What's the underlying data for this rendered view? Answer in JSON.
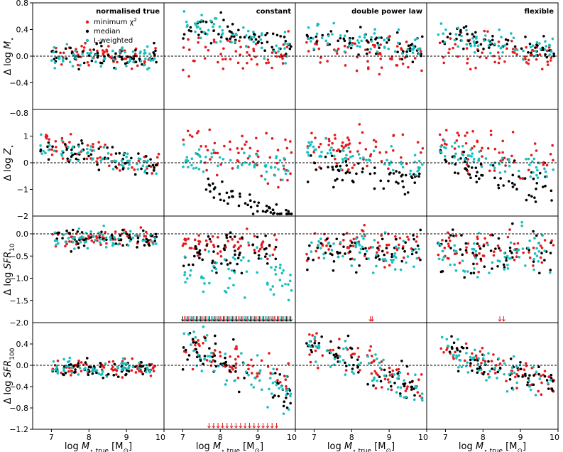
{
  "chart_data": {
    "type": "scatter",
    "layout": {
      "rows": 4,
      "cols": 4,
      "shared_x": true,
      "shared_y_by_row": true
    },
    "x_range": [
      6.5,
      10
    ],
    "x_ticks": [
      7,
      8,
      9,
      10
    ],
    "x_tick_labels": [
      "7",
      "8",
      "9",
      "10"
    ],
    "xlabel": [
      "log M",
      "⋆,true",
      " [M",
      "⊙",
      "]"
    ],
    "columns": [
      "normalised true",
      "constant",
      "double power law",
      "flexible"
    ],
    "colors": {
      "minimum_chi2": "#e41a1c",
      "median": "#000000",
      "l_weighted": "#17bfbf"
    },
    "legend": {
      "panel": "row0-col0",
      "placement": "top-right",
      "entries": [
        {
          "key": "minimum_chi2",
          "label": [
            "minimum χ",
            "2"
          ]
        },
        {
          "key": "median",
          "label": [
            "median"
          ]
        },
        {
          "key": "l_weighted",
          "label": [
            "L-weighted"
          ]
        }
      ]
    },
    "rows": [
      {
        "ylabel": [
          "Δ log ",
          "M",
          "⋆"
        ],
        "y_range": [
          -0.8,
          0.8
        ],
        "y_ticks": [
          -0.4,
          0.0,
          0.4,
          0.8
        ],
        "y_tick_labels": [
          "−0.4",
          "0.0",
          "0.4",
          "0.8"
        ],
        "extra_tick_label": "−0.8",
        "reference_line": 0.0
      },
      {
        "ylabel": [
          "Δ log ",
          "Z",
          "⋆"
        ],
        "y_range": [
          -2,
          2
        ],
        "y_ticks": [
          -1,
          0,
          1
        ],
        "y_tick_labels": [
          "−1",
          "0",
          "1"
        ],
        "extra_tick_label": "−2",
        "reference_line": 0.0
      },
      {
        "ylabel": [
          "Δ log ",
          "SFR",
          "10"
        ],
        "y_range": [
          -2.0,
          0.4
        ],
        "y_ticks": [
          -1.5,
          -1.0,
          -0.5,
          0.0
        ],
        "y_tick_labels": [
          "−1.5",
          "−1.0",
          "−0.5",
          "0.0"
        ],
        "extra_tick_label": "−2.0",
        "reference_line": 0.0
      },
      {
        "ylabel": [
          "Δ log ",
          "SFR",
          "100"
        ],
        "y_range": [
          -1.2,
          0.8
        ],
        "y_ticks": [
          -1.2,
          -0.8,
          -0.4,
          0.0,
          0.4
        ],
        "y_tick_labels": [
          "−1.2",
          "−0.8",
          "−0.4",
          "0.0",
          "0.4"
        ],
        "reference_line": 0.0
      }
    ],
    "series_trends": {
      "minimum_chi2": [
        [
          {
            "m": 0.0,
            "s": 0.12,
            "x0": 7.0,
            "x1": 9.8
          },
          {
            "m": 0.05,
            "s": 0.22,
            "x0": 7.0,
            "x1": 9.9
          },
          {
            "m": 0.06,
            "s": 0.2,
            "x0": 6.8,
            "x1": 9.9
          },
          {
            "m": 0.05,
            "s": 0.18,
            "x0": 6.8,
            "x1": 9.9
          }
        ],
        [
          {
            "m": 0.35,
            "s": 0.35,
            "x0": 6.7,
            "x1": 9.9
          },
          {
            "m": 0.45,
            "s": 0.8,
            "x0": 7.0,
            "x1": 9.9
          },
          {
            "m": 0.55,
            "s": 0.6,
            "x0": 6.8,
            "x1": 9.9
          },
          {
            "m": 0.45,
            "s": 0.6,
            "x0": 6.8,
            "x1": 9.9
          }
        ],
        [
          {
            "m": -0.12,
            "s": 0.15,
            "x0": 7.0,
            "x1": 9.8
          },
          {
            "m": -0.25,
            "s": 0.18,
            "x0": 7.0,
            "x1": 9.5
          },
          {
            "m": -0.25,
            "s": 0.28,
            "x0": 6.8,
            "x1": 9.9
          },
          {
            "m": -0.3,
            "s": 0.3,
            "x0": 6.8,
            "x1": 9.9
          }
        ],
        [
          {
            "m": -0.05,
            "s": 0.12,
            "x0": 7.0,
            "x1": 9.8
          },
          {
            "m": 0.1,
            "s": 0.25,
            "x0": 7.0,
            "x1": 9.9
          },
          {
            "m": 0.05,
            "s": 0.25,
            "x0": 6.8,
            "x1": 9.9
          },
          {
            "m": 0.05,
            "s": 0.2,
            "x0": 6.8,
            "x1": 9.9
          }
        ]
      ],
      "median": [
        [
          {
            "m": 0.0,
            "s": 0.12,
            "x0": 7.0,
            "x1": 9.8
          },
          {
            "m": 0.35,
            "s": 0.15,
            "x0": 7.0,
            "x1": 9.9
          },
          {
            "m": 0.2,
            "s": 0.15,
            "x0": 6.8,
            "x1": 9.9
          },
          {
            "m": 0.22,
            "s": 0.12,
            "x0": 6.8,
            "x1": 9.9
          }
        ],
        [
          {
            "m": 0.25,
            "s": 0.3,
            "x0": 6.7,
            "x1": 9.9
          },
          {
            "m": -1.2,
            "s": 0.3,
            "x0": 7.6,
            "x1": 9.9
          },
          {
            "m": -0.4,
            "s": 0.35,
            "x0": 6.8,
            "x1": 9.9
          },
          {
            "m": -0.35,
            "s": 0.4,
            "x0": 6.8,
            "x1": 9.9
          }
        ],
        [
          {
            "m": -0.12,
            "s": 0.15,
            "x0": 7.0,
            "x1": 9.8
          },
          {
            "m": -0.4,
            "s": 0.3,
            "x0": 7.0,
            "x1": 9.5
          },
          {
            "m": -0.4,
            "s": 0.3,
            "x0": 6.8,
            "x1": 9.9
          },
          {
            "m": -0.45,
            "s": 0.35,
            "x0": 6.8,
            "x1": 9.9
          }
        ],
        [
          {
            "m": -0.05,
            "s": 0.12,
            "x0": 7.0,
            "x1": 9.8
          },
          {
            "m": 0.0,
            "s": 0.3,
            "x0": 7.0,
            "x1": 9.9
          },
          {
            "m": 0.0,
            "s": 0.22,
            "x0": 6.8,
            "x1": 9.9
          },
          {
            "m": 0.0,
            "s": 0.2,
            "x0": 6.8,
            "x1": 9.9
          }
        ]
      ],
      "l_weighted": [
        [
          {
            "m": 0.0,
            "s": 0.12,
            "x0": 7.0,
            "x1": 9.8
          },
          {
            "m": 0.35,
            "s": 0.15,
            "x0": 7.0,
            "x1": 9.9
          },
          {
            "m": 0.2,
            "s": 0.15,
            "x0": 6.8,
            "x1": 9.9
          },
          {
            "m": 0.2,
            "s": 0.12,
            "x0": 6.8,
            "x1": 9.9
          }
        ],
        [
          {
            "m": 0.3,
            "s": 0.3,
            "x0": 6.7,
            "x1": 9.9
          },
          {
            "m": 0.0,
            "s": 0.35,
            "x0": 7.0,
            "x1": 9.9
          },
          {
            "m": 0.2,
            "s": 0.3,
            "x0": 6.8,
            "x1": 9.9
          },
          {
            "m": 0.1,
            "s": 0.3,
            "x0": 6.8,
            "x1": 9.9
          }
        ],
        [
          {
            "m": -0.12,
            "s": 0.15,
            "x0": 7.0,
            "x1": 9.8
          },
          {
            "m": -0.9,
            "s": 0.5,
            "x0": 7.0,
            "x1": 9.9
          },
          {
            "m": -0.4,
            "s": 0.3,
            "x0": 6.8,
            "x1": 9.9
          },
          {
            "m": -0.45,
            "s": 0.35,
            "x0": 6.8,
            "x1": 9.9
          }
        ],
        [
          {
            "m": -0.05,
            "s": 0.12,
            "x0": 7.0,
            "x1": 9.8
          },
          {
            "m": 0.0,
            "s": 0.3,
            "x0": 7.0,
            "x1": 9.9
          },
          {
            "m": 0.0,
            "s": 0.22,
            "x0": 6.8,
            "x1": 9.9
          },
          {
            "m": 0.0,
            "s": 0.2,
            "x0": 6.8,
            "x1": 9.9
          }
        ]
      ]
    },
    "slopes": {
      "minimum_chi2": [
        [
          0,
          0,
          -0.05,
          -0.04
        ],
        [
          -0.25,
          -0.3,
          -0.1,
          -0.3
        ],
        [
          0,
          0,
          0,
          0
        ],
        [
          0,
          -0.25,
          -0.25,
          -0.2
        ]
      ],
      "median": [
        [
          0,
          -0.12,
          -0.05,
          -0.06
        ],
        [
          -0.25,
          -0.5,
          -0.2,
          -0.4
        ],
        [
          0,
          0,
          0,
          0
        ],
        [
          0,
          -0.3,
          -0.3,
          -0.25
        ]
      ],
      "l_weighted": [
        [
          0,
          -0.12,
          -0.05,
          -0.06
        ],
        [
          -0.25,
          -0.1,
          -0.2,
          -0.25
        ],
        [
          0,
          0,
          0,
          0
        ],
        [
          0,
          -0.3,
          -0.3,
          -0.25
        ]
      ]
    },
    "lower_limit_markers": [
      {
        "row": 2,
        "col": 1,
        "y": -2.0,
        "x_range": [
          7.0,
          9.9
        ],
        "series": [
          "median",
          "minimum_chi2",
          "l_weighted"
        ]
      },
      {
        "row": 2,
        "col": 2,
        "y": -2.0,
        "x": [
          8.5,
          8.55
        ],
        "series": [
          "minimum_chi2"
        ]
      },
      {
        "row": 2,
        "col": 3,
        "y": -2.0,
        "x": [
          8.45,
          8.55
        ],
        "series": [
          "minimum_chi2"
        ]
      },
      {
        "row": 3,
        "col": 1,
        "y": -1.2,
        "x_range": [
          7.7,
          9.5
        ],
        "series": [
          "minimum_chi2"
        ]
      }
    ],
    "points_per_series_per_panel": 60
  }
}
